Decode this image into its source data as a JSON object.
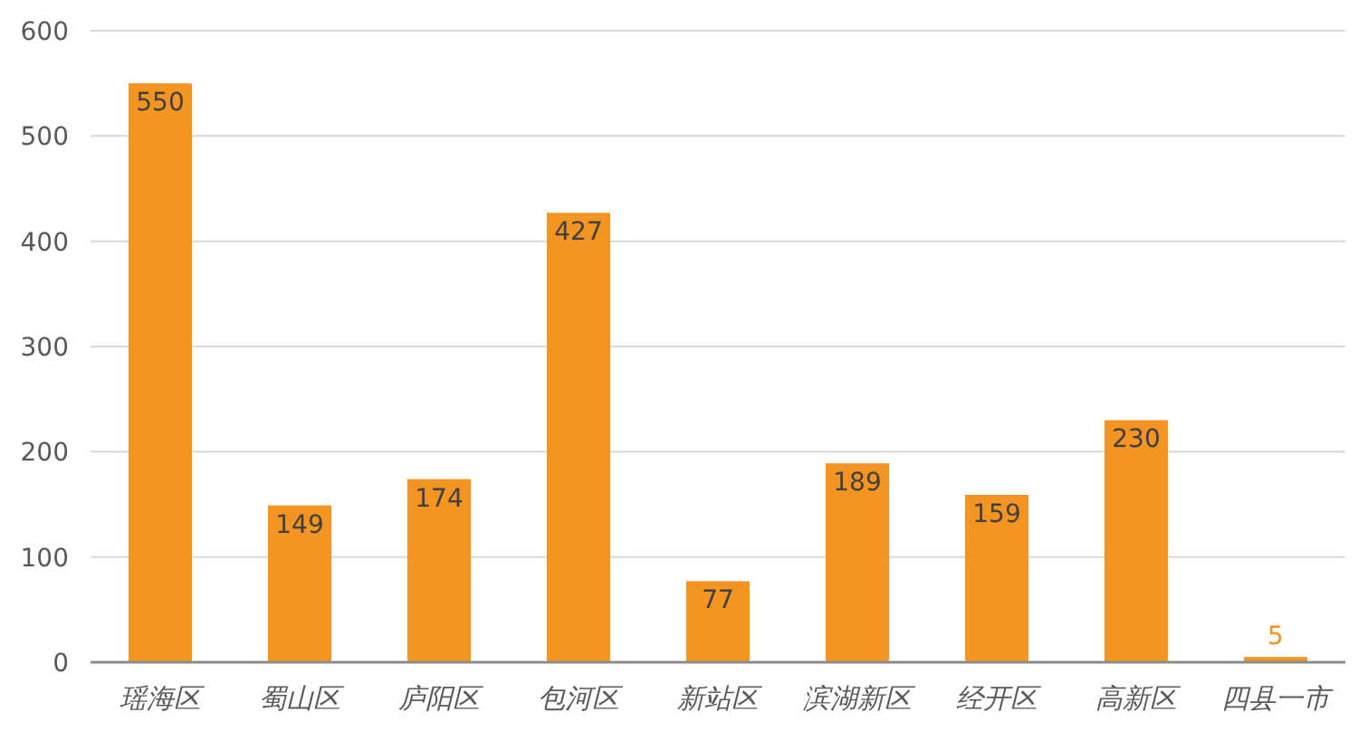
{
  "chart_data": {
    "type": "bar",
    "categories": [
      "瑶海区",
      "蜀山区",
      "庐阳区",
      "包河区",
      "新站区",
      "滨湖新区",
      "经开区",
      "高新区",
      "四县一市"
    ],
    "values": [
      550,
      149,
      174,
      427,
      77,
      189,
      159,
      230,
      5
    ],
    "color": "#f39423",
    "ylim": [
      0,
      600
    ],
    "yticks": [
      0,
      100,
      200,
      300,
      400,
      500,
      600
    ],
    "grid": "y",
    "data_labels": true
  }
}
